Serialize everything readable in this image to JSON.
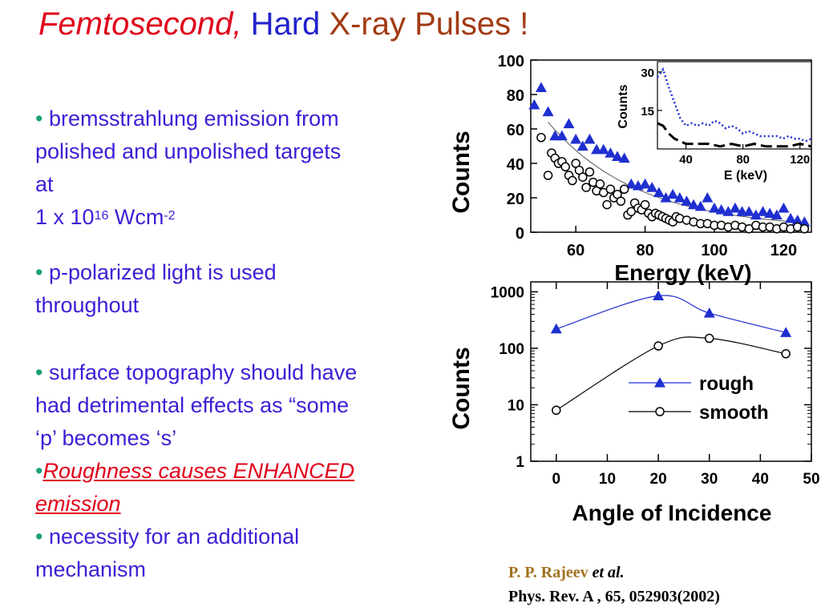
{
  "slide": {
    "title": {
      "part1": "Femtosecond,",
      "part2": "Hard",
      "part3": "X-ray Pulses !",
      "colors": {
        "part1": "#e0001a",
        "part2": "#2222cc",
        "part3": "#a23a12"
      }
    },
    "bullets": [
      {
        "marker": "•",
        "line1": " bremsstrahlung emission from",
        "line2": "polished and unpolished targets",
        "line3": "at",
        "line4_pre": "1 x 10",
        "sup1": "16",
        "line4_mid": " Wcm",
        "sup2": "-2"
      },
      {
        "marker": "•",
        "line1": "p-polarized light is used",
        "line2": "throughout"
      },
      {
        "marker": "•",
        "line1": " surface topography should have",
        "line2": "had detrimental effects as “some",
        "line3": "‘p’ becomes ‘s’"
      },
      {
        "marker": "•",
        "line1": "Roughness causes ENHANCED",
        "line2": "emission"
      },
      {
        "marker": "•",
        "line1": " necessity for an additional",
        "line2": "mechanism"
      }
    ],
    "citation": {
      "author": "P. P. Rajeev",
      "etal": "et al.",
      "journal": "Phys. Rev. A , 65, 052903(2002)"
    }
  },
  "chart_data": [
    {
      "type": "scatter",
      "xlabel": "Energy (keV)",
      "ylabel": "Counts",
      "xlim": [
        47,
        128
      ],
      "ylim": [
        0,
        100
      ],
      "xticks": [
        "60",
        "80",
        "100",
        "120"
      ],
      "yticks": [
        "0",
        "20",
        "40",
        "60",
        "80",
        "100"
      ],
      "series": [
        {
          "marker": "triangle",
          "color": "#1f2fd0",
          "x": [
            48,
            50,
            52,
            54,
            56,
            58,
            60,
            62,
            64,
            66,
            68,
            70,
            72,
            74,
            76,
            78,
            80,
            82,
            84,
            86,
            88,
            90,
            92,
            94,
            96,
            98,
            100,
            102,
            104,
            106,
            108,
            110,
            112,
            114,
            116,
            118,
            120,
            122,
            124,
            126
          ],
          "y": [
            74,
            84,
            70,
            56,
            56,
            63,
            54,
            50,
            54,
            48,
            48,
            46,
            44,
            43,
            28,
            27,
            28,
            26,
            23,
            20,
            22,
            20,
            18,
            16,
            15,
            20,
            14,
            13,
            12,
            14,
            12,
            12,
            10,
            12,
            11,
            10,
            14,
            8,
            7,
            6
          ]
        },
        {
          "marker": "circle",
          "color": "#000000",
          "x": [
            50,
            52,
            53,
            54,
            55,
            56,
            57,
            58,
            59,
            60,
            61,
            62,
            63,
            64,
            65,
            66,
            67,
            68,
            69,
            70,
            71,
            72,
            73,
            74,
            75,
            76,
            77,
            78,
            79,
            80,
            81,
            82,
            83,
            84,
            85,
            86,
            87,
            88,
            89,
            90,
            92,
            94,
            96,
            98,
            100,
            102,
            104,
            106,
            108,
            110,
            112,
            114,
            116,
            118,
            120,
            122,
            124,
            126
          ],
          "y": [
            55,
            33,
            46,
            43,
            40,
            41,
            38,
            33,
            30,
            40,
            36,
            32,
            26,
            35,
            29,
            24,
            28,
            23,
            16,
            25,
            20,
            22,
            18,
            25,
            10,
            12,
            17,
            14,
            13,
            16,
            11,
            9,
            11,
            10,
            9,
            8,
            7,
            6,
            9,
            8,
            7,
            6,
            5,
            5,
            4,
            4,
            3,
            4,
            3,
            2,
            4,
            3,
            3,
            2,
            3,
            2,
            3,
            2
          ]
        }
      ]
    },
    {
      "type": "line",
      "inset": true,
      "xlabel": "E (keV)",
      "ylabel": "Counts",
      "xticks": [
        "40",
        "80",
        "120"
      ],
      "yticks": [
        "15",
        "30"
      ],
      "xlim": [
        20,
        128
      ],
      "ylim": [
        0,
        34
      ],
      "series": [
        {
          "style": "dotted",
          "color": "#1f2fd0",
          "x": [
            20,
            24,
            28,
            32,
            36,
            40,
            44,
            48,
            52,
            56,
            60,
            64,
            68,
            72,
            76,
            80,
            84,
            88,
            92,
            96,
            100,
            104,
            108,
            112,
            116,
            120,
            124,
            128
          ],
          "y": [
            28,
            31,
            24,
            18,
            12,
            9,
            10,
            9,
            10,
            9,
            11,
            10,
            8,
            9,
            8,
            6,
            7,
            6,
            5,
            5,
            5,
            5,
            4,
            5,
            4,
            4,
            3,
            4
          ]
        },
        {
          "style": "solid-dashed",
          "color": "#000000",
          "x": [
            20,
            24,
            28,
            32,
            36,
            40,
            48,
            56,
            64,
            72,
            80,
            88,
            96,
            104,
            112,
            120,
            128
          ],
          "y": [
            10,
            9,
            6,
            4,
            3,
            2,
            2,
            2,
            1,
            2,
            1,
            2,
            1,
            1,
            1,
            2,
            1
          ]
        }
      ]
    },
    {
      "type": "line",
      "xlabel": "Angle of Incidence",
      "ylabel": "Counts",
      "yscale": "log",
      "xlim": [
        -5,
        50
      ],
      "ylim": [
        1,
        1500
      ],
      "xticks": [
        "0",
        "10",
        "20",
        "30",
        "40",
        "50"
      ],
      "yticks": [
        "1",
        "10",
        "100",
        "1000"
      ],
      "legend": "center-right",
      "series": [
        {
          "name": "rough",
          "marker": "triangle",
          "color": "#1f2fd0",
          "x": [
            0,
            20,
            30,
            45
          ],
          "y": [
            220,
            850,
            420,
            190
          ]
        },
        {
          "name": "smooth",
          "marker": "circle",
          "color": "#000000",
          "x": [
            0,
            20,
            30,
            45
          ],
          "y": [
            8,
            110,
            150,
            80
          ]
        }
      ]
    }
  ]
}
